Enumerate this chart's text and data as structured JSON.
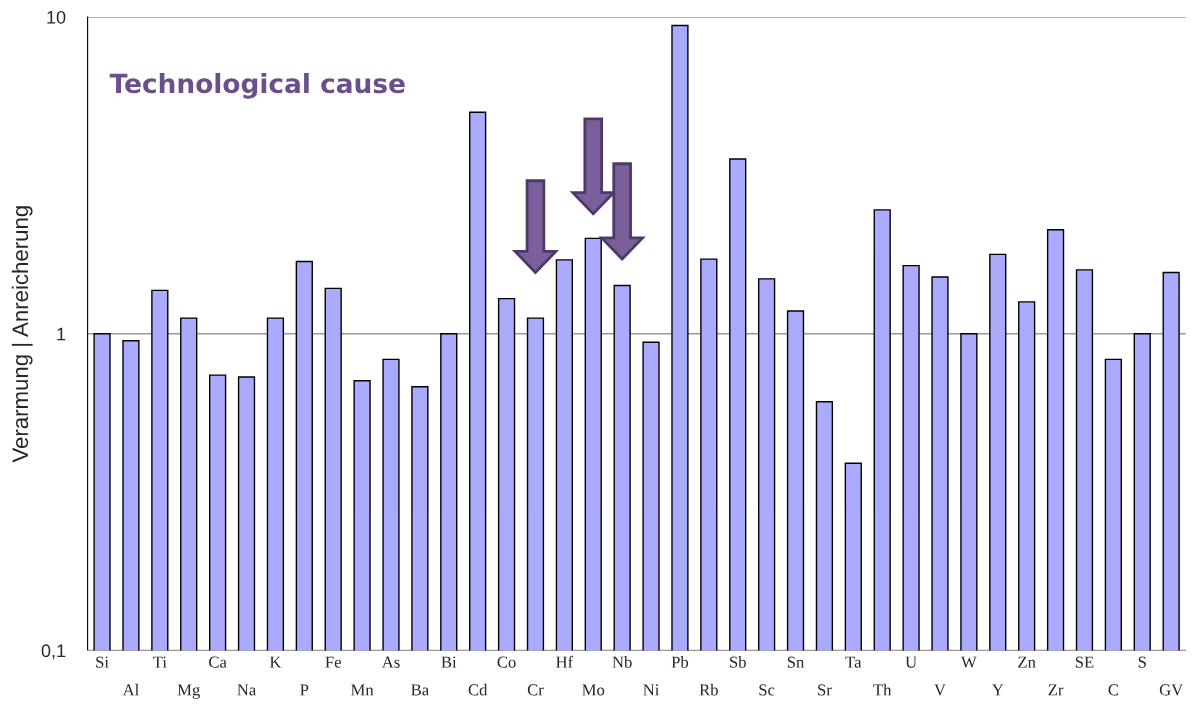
{
  "chart_data": {
    "type": "bar",
    "ylabel": "Verarmung | Anreicherung",
    "annotations": [
      "Technological cause"
    ],
    "categories": [
      "Si",
      "Al",
      "Ti",
      "Mg",
      "Ca",
      "Na",
      "K",
      "P",
      "Fe",
      "Mn",
      "As",
      "Ba",
      "Bi",
      "Cd",
      "Co",
      "Cr",
      "Hf",
      "Mo",
      "Nb",
      "Ni",
      "Pb",
      "Rb",
      "Sb",
      "Sc",
      "Sn",
      "Sr",
      "Ta",
      "Th",
      "U",
      "V",
      "W",
      "Y",
      "Zn",
      "Zr",
      "SE",
      "C",
      "S",
      "GV"
    ],
    "values": [
      1.0,
      0.95,
      1.37,
      1.12,
      0.74,
      0.73,
      1.12,
      1.69,
      1.39,
      0.71,
      0.83,
      0.68,
      1.0,
      5.0,
      1.29,
      1.12,
      1.71,
      2.0,
      1.42,
      0.94,
      9.4,
      1.72,
      3.56,
      1.49,
      1.18,
      0.61,
      0.39,
      2.46,
      1.64,
      1.51,
      1.0,
      1.78,
      1.26,
      2.13,
      1.59,
      0.83,
      1.0,
      1.56
    ],
    "color": "#aaaaff",
    "log": true,
    "ylim": [
      0.1,
      10
    ],
    "yticks": [
      {
        "value": 0.1,
        "label": "0,1"
      },
      1,
      10
    ],
    "grid": "y",
    "legend": false
  }
}
